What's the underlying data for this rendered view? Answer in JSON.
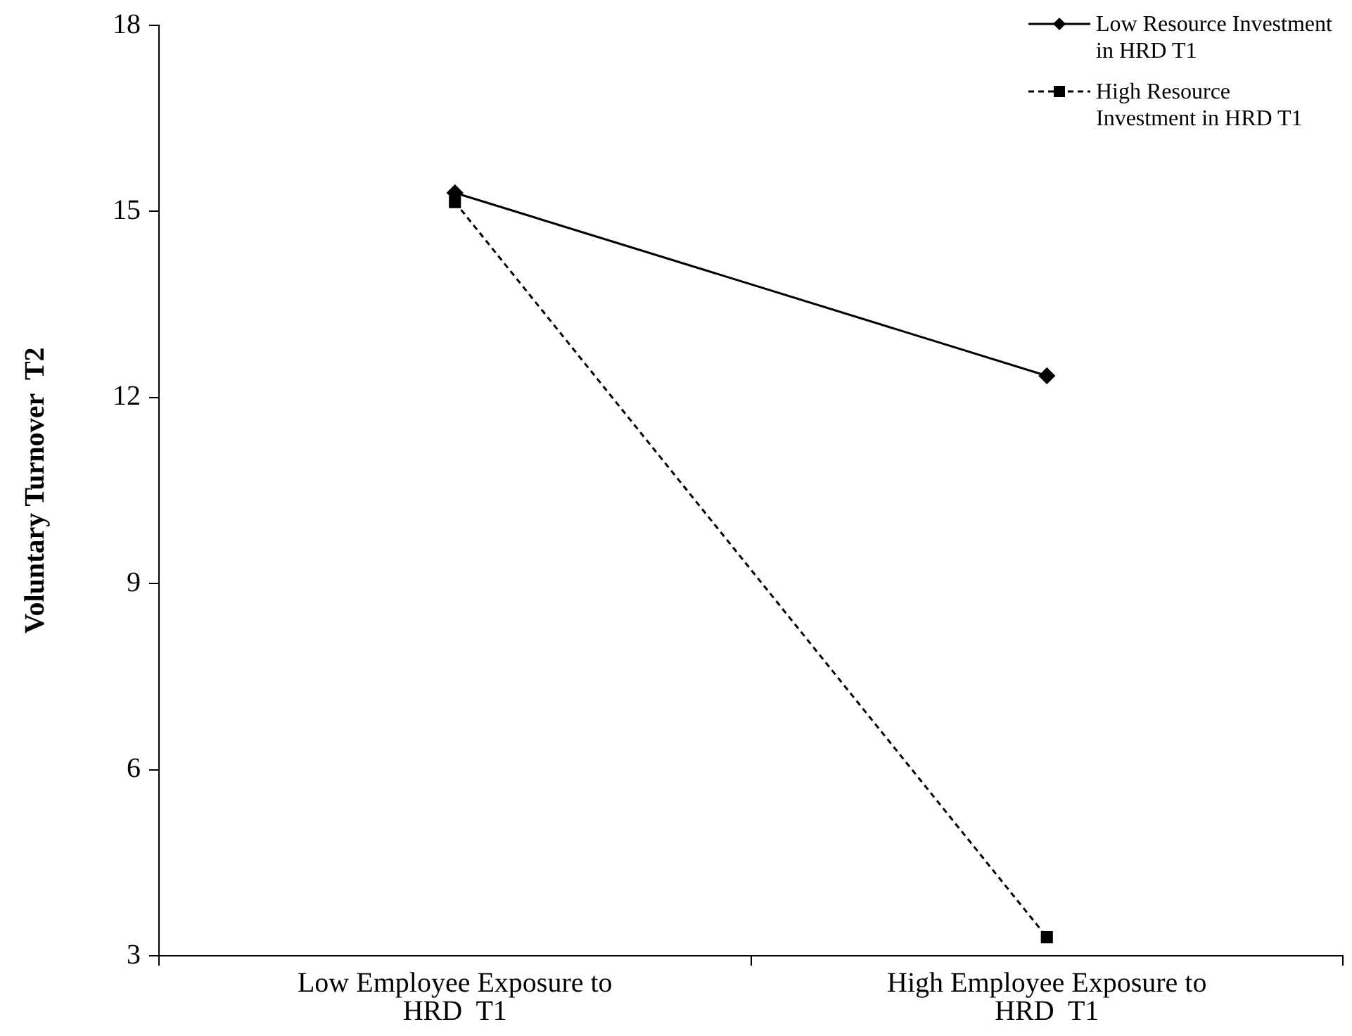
{
  "chart_data": {
    "type": "line",
    "ylabel": "Voluntary Turnover  T2",
    "categories": [
      "Low Employee Exposure to HRD  T1",
      "High Employee Exposure to HRD  T1"
    ],
    "series": [
      {
        "name": "Low Resource Investment in HRD  T1",
        "color": "#000000",
        "values": [
          15.3,
          12.35
        ],
        "marker": "diamond",
        "line_style": "solid"
      },
      {
        "name": "High Resource Investment in HRD  T1",
        "color": "#000000",
        "values": [
          15.15,
          3.3
        ],
        "marker": "square",
        "line_style": "dashed"
      }
    ],
    "ylim": [
      3,
      18
    ],
    "yticks": [
      3,
      6,
      9,
      12,
      15,
      18
    ],
    "grid": false,
    "legend": "top right"
  }
}
